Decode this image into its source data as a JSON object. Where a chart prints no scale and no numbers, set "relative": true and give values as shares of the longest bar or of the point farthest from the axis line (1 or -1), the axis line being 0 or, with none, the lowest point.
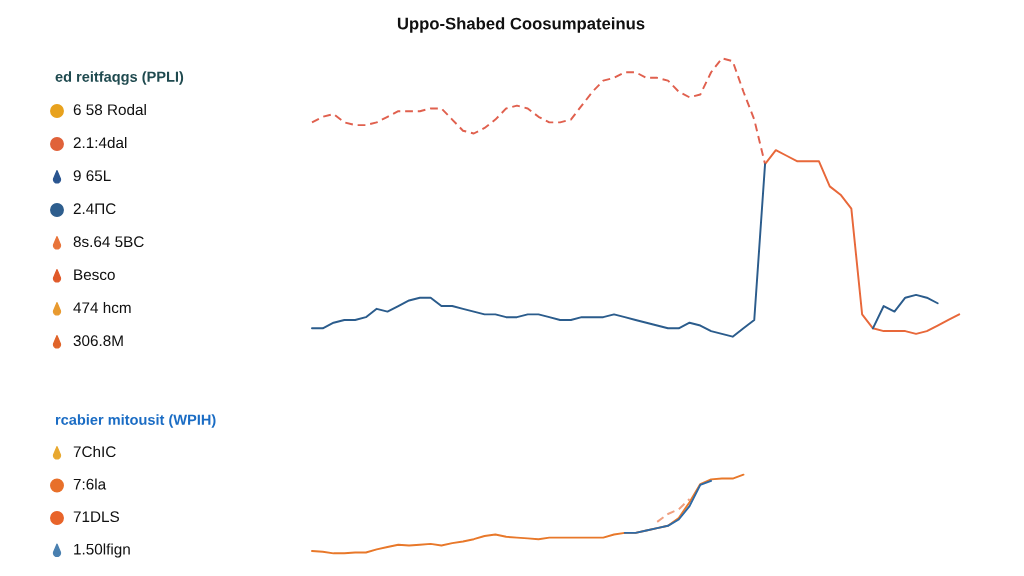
{
  "chart_data": [
    {
      "type": "line",
      "title": "Uppo-Shabed Coosumpateinus",
      "relative": true,
      "categories": [
        null,
        null,
        null,
        null,
        null,
        null,
        null,
        null,
        null,
        null,
        null,
        null,
        null,
        null,
        null,
        null,
        null,
        null,
        null,
        null,
        null,
        null,
        null,
        null,
        null,
        null,
        null,
        null,
        null,
        null,
        null,
        null,
        null,
        null,
        null,
        null,
        null,
        null,
        null,
        null,
        null,
        null,
        null,
        null,
        null,
        null,
        null,
        null,
        null,
        null,
        null,
        null,
        null,
        null,
        null,
        null,
        null,
        null,
        null,
        null,
        null
      ],
      "series": [
        {
          "color": "#e0604e",
          "line_style": "dashed",
          "values": [
            0.77,
            0.79,
            0.8,
            0.77,
            0.76,
            0.76,
            0.77,
            0.79,
            0.81,
            0.81,
            0.81,
            0.82,
            0.82,
            0.78,
            0.74,
            0.73,
            0.75,
            0.78,
            0.82,
            0.83,
            0.82,
            0.79,
            0.77,
            0.77,
            0.78,
            0.83,
            0.88,
            0.92,
            0.93,
            0.95,
            0.95,
            0.93,
            0.93,
            0.92,
            0.88,
            0.86,
            0.87,
            0.95,
            1.0,
            0.99,
            0.88,
            0.78,
            0.62,
            null,
            null,
            null,
            null,
            null,
            null,
            null,
            null,
            null,
            null,
            null,
            null,
            null,
            null,
            null,
            null,
            null,
            null
          ]
        },
        {
          "color": "#e8683a",
          "values": [
            null,
            null,
            null,
            null,
            null,
            null,
            null,
            null,
            null,
            null,
            null,
            null,
            null,
            null,
            null,
            null,
            null,
            null,
            null,
            null,
            null,
            null,
            null,
            null,
            null,
            null,
            null,
            null,
            null,
            null,
            null,
            null,
            null,
            null,
            null,
            null,
            null,
            null,
            null,
            null,
            null,
            null,
            0.62,
            0.67,
            0.65,
            0.63,
            0.63,
            0.63,
            0.54,
            0.51,
            0.46,
            0.08,
            0.03,
            0.02,
            0.02,
            0.02,
            0.01,
            0.02,
            0.04,
            0.06,
            0.08
          ]
        },
        {
          "color": "#2b5c8c",
          "values": [
            0.03,
            0.03,
            0.05,
            0.06,
            0.06,
            0.07,
            0.1,
            0.09,
            0.11,
            0.13,
            0.14,
            0.14,
            0.11,
            0.11,
            0.1,
            0.09,
            0.08,
            0.08,
            0.07,
            0.07,
            0.08,
            0.08,
            0.07,
            0.06,
            0.06,
            0.07,
            0.07,
            0.07,
            0.08,
            0.07,
            0.06,
            0.05,
            0.04,
            0.03,
            0.03,
            0.05,
            0.04,
            0.02,
            0.01,
            0.0,
            0.03,
            0.06,
            0.62,
            null,
            null,
            null,
            null,
            null,
            null,
            null,
            null,
            null,
            0.03,
            0.11,
            0.09,
            0.14,
            0.15,
            0.14,
            0.12,
            null,
            null
          ]
        }
      ],
      "annotations": [
        "ed reitfaqgs (PPLI)",
        "6 58 Rodal",
        "2.1:4dal",
        "9 65L",
        "2.4ПC",
        "8s.64 5BC",
        "Besco",
        "474 hcm",
        "306.8M"
      ]
    },
    {
      "type": "line",
      "relative": true,
      "categories": [
        null,
        null,
        null,
        null,
        null,
        null,
        null,
        null,
        null,
        null,
        null,
        null,
        null,
        null,
        null,
        null,
        null,
        null,
        null,
        null,
        null,
        null,
        null,
        null,
        null,
        null,
        null,
        null,
        null,
        null,
        null,
        null,
        null,
        null,
        null,
        null,
        null,
        null,
        null,
        null,
        null,
        null,
        null,
        null,
        null,
        null,
        null,
        null,
        null,
        null,
        null,
        null,
        null,
        null,
        null,
        null,
        null,
        null,
        null,
        null,
        null
      ],
      "series": [
        {
          "color": "#e8782a",
          "values": [
            0.03,
            0.02,
            0.0,
            0.0,
            0.01,
            0.01,
            0.05,
            0.08,
            0.11,
            0.1,
            0.11,
            0.12,
            0.1,
            0.13,
            0.15,
            0.18,
            0.22,
            0.24,
            0.21,
            0.2,
            0.19,
            0.18,
            0.2,
            0.2,
            0.2,
            0.2,
            0.2,
            0.2,
            0.24,
            0.26,
            0.26,
            0.29,
            0.32,
            0.35,
            0.45,
            0.65,
            0.88,
            0.94,
            0.95,
            0.95,
            1.0,
            null,
            null,
            null,
            null,
            null,
            null,
            null,
            null,
            null,
            null,
            null,
            null,
            null,
            null,
            null,
            null,
            null,
            null,
            null,
            null
          ]
        },
        {
          "color": "#f0a080",
          "line_style": "dashed",
          "values": [
            null,
            null,
            null,
            null,
            null,
            null,
            null,
            null,
            null,
            null,
            null,
            null,
            null,
            null,
            null,
            null,
            null,
            null,
            null,
            null,
            null,
            null,
            null,
            null,
            null,
            null,
            null,
            null,
            null,
            null,
            null,
            null,
            0.4,
            0.5,
            0.56,
            0.69,
            null,
            null,
            null,
            null,
            null,
            null,
            null,
            null,
            null,
            null,
            null,
            null,
            null,
            null,
            null,
            null,
            null,
            null,
            null,
            null,
            null,
            null,
            null,
            null,
            null
          ]
        },
        {
          "color": "#2d6aa6",
          "values": [
            null,
            null,
            null,
            null,
            null,
            null,
            null,
            null,
            null,
            null,
            null,
            null,
            null,
            null,
            null,
            null,
            null,
            null,
            null,
            null,
            null,
            null,
            null,
            null,
            null,
            null,
            null,
            null,
            null,
            0.26,
            0.26,
            0.29,
            0.32,
            0.35,
            0.43,
            0.6,
            0.87,
            0.92,
            null,
            null,
            null,
            null,
            null,
            null,
            null,
            null,
            null,
            null,
            null,
            null,
            null,
            null,
            null,
            null,
            null,
            null,
            null,
            null,
            null,
            null,
            null
          ]
        }
      ],
      "annotations": [
        "rcabier mitousit (WPIH)",
        "7ChIC",
        "7:6la",
        "71DLS",
        "1.50lfign"
      ]
    }
  ]
}
